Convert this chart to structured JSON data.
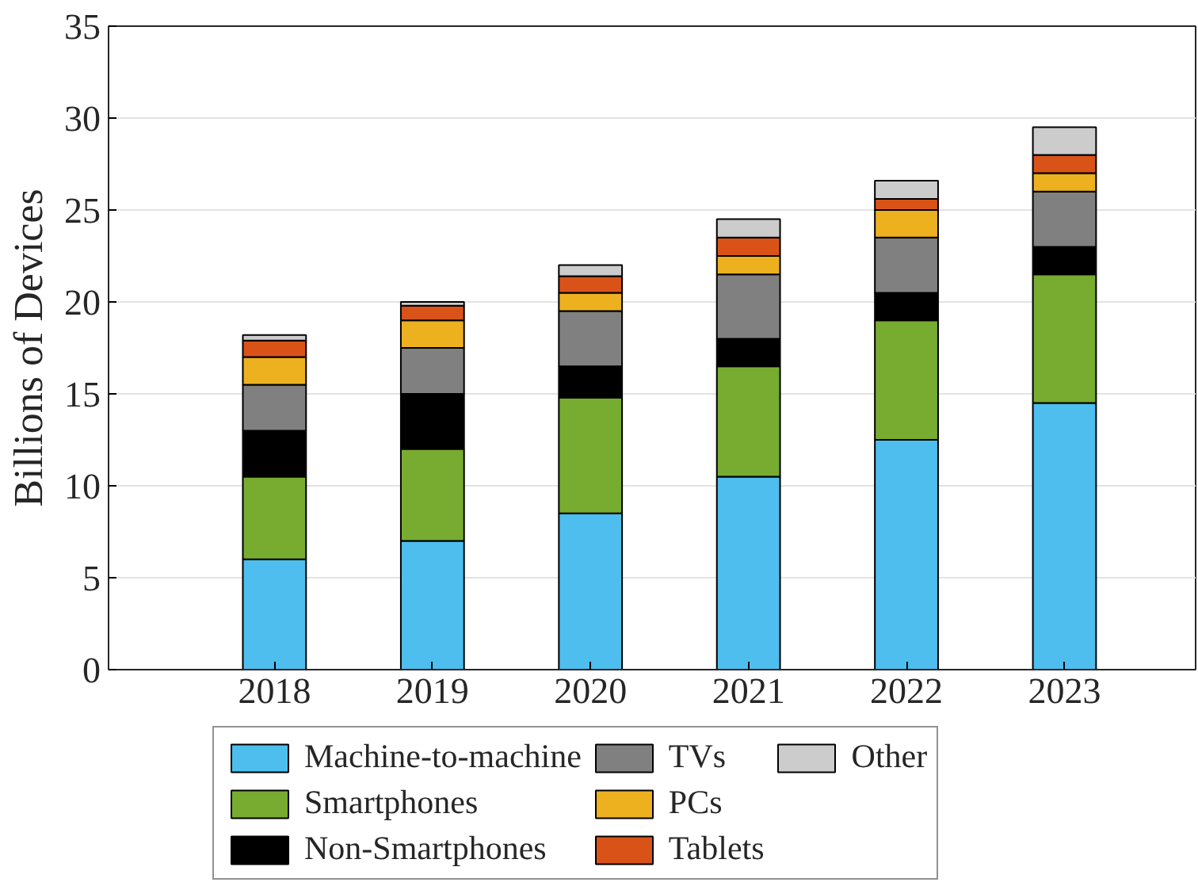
{
  "chart_data": {
    "type": "bar",
    "stacked": true,
    "ylabel": "Billions of Devices",
    "categories": [
      "2018",
      "2019",
      "2020",
      "2021",
      "2022",
      "2023"
    ],
    "series": [
      {
        "name": "Machine-to-machine",
        "color": "#4dbeee",
        "values": [
          6,
          7,
          8.5,
          10.5,
          12.5,
          14.5
        ]
      },
      {
        "name": "Smartphones",
        "color": "#77ac30",
        "values": [
          4.5,
          5,
          6.3,
          6,
          6.5,
          7
        ]
      },
      {
        "name": "Non-Smartphones",
        "color": "#000000",
        "values": [
          2.5,
          3,
          1.7,
          1.5,
          1.5,
          1.5
        ]
      },
      {
        "name": "TVs",
        "color": "#808080",
        "values": [
          2.5,
          2.5,
          3,
          3.5,
          3,
          3
        ]
      },
      {
        "name": "PCs",
        "color": "#edb120",
        "values": [
          1.5,
          1.5,
          1,
          1,
          1.5,
          1
        ]
      },
      {
        "name": "Tablets",
        "color": "#d95319",
        "values": [
          0.9,
          0.8,
          0.9,
          1,
          0.6,
          1
        ]
      },
      {
        "name": "Other",
        "color": "#cccccc",
        "values": [
          0.3,
          0.2,
          0.6,
          1,
          1,
          1.5
        ]
      }
    ],
    "ylim": [
      0,
      35
    ],
    "yticks": [
      0,
      5,
      10,
      15,
      20,
      25,
      30,
      35
    ],
    "grid": "y",
    "legend": "bottom"
  }
}
